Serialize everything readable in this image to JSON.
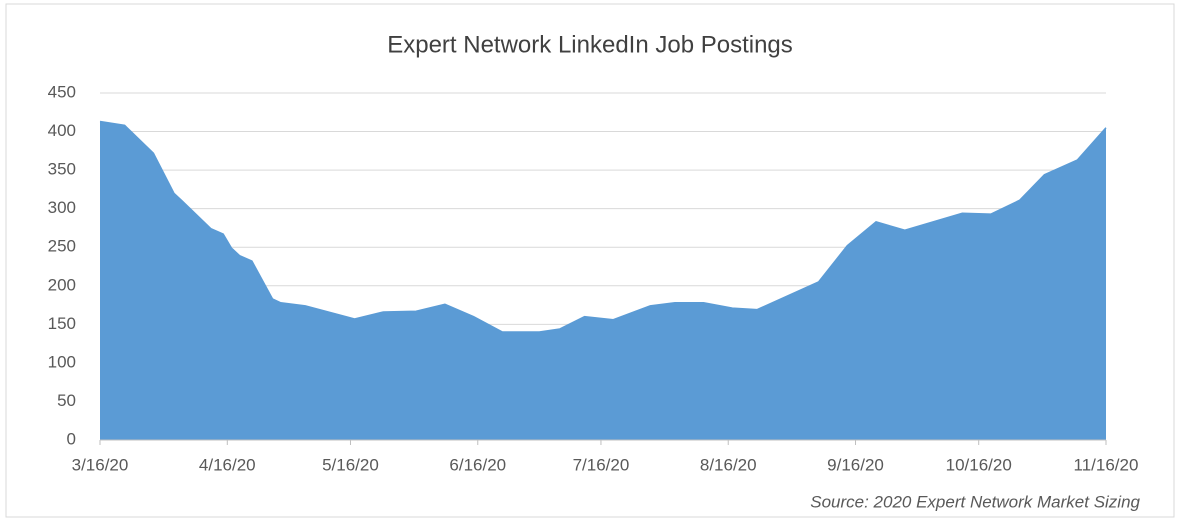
{
  "chart_data": {
    "type": "area",
    "title": "Expert Network LinkedIn Job Postings",
    "source": "Source: 2020 Expert Network Market Sizing",
    "color": "#5b9bd5",
    "grid": true,
    "x": [
      "2020-03-16",
      "2020-03-22",
      "2020-03-29",
      "2020-04-03",
      "2020-04-05",
      "2020-04-12",
      "2020-04-15",
      "2020-04-17",
      "2020-04-19",
      "2020-04-22",
      "2020-04-27",
      "2020-04-29",
      "2020-05-05",
      "2020-05-17",
      "2020-05-24",
      "2020-06-01",
      "2020-06-08",
      "2020-06-15",
      "2020-06-22",
      "2020-07-01",
      "2020-07-06",
      "2020-07-12",
      "2020-07-19",
      "2020-07-28",
      "2020-08-03",
      "2020-08-10",
      "2020-08-17",
      "2020-08-23",
      "2020-09-07",
      "2020-09-14",
      "2020-09-21",
      "2020-09-28",
      "2020-10-12",
      "2020-10-19",
      "2020-10-26",
      "2020-11-01",
      "2020-11-09",
      "2020-11-16"
    ],
    "values": [
      413,
      408,
      372,
      320,
      310,
      274,
      267,
      249,
      239,
      232,
      183,
      178,
      174,
      157,
      166,
      167,
      176,
      160,
      140,
      140,
      144,
      160,
      156,
      174,
      178,
      178,
      171,
      169,
      205,
      252,
      283,
      272,
      294,
      293,
      311,
      344,
      363,
      405
    ],
    "xlim": [
      "2020-03-16",
      "2020-11-16"
    ],
    "xticks": [
      {
        "value": "2020-03-16",
        "label": "3/16/20"
      },
      {
        "value": "2020-04-16",
        "label": "4/16/20"
      },
      {
        "value": "2020-05-16",
        "label": "5/16/20"
      },
      {
        "value": "2020-06-16",
        "label": "6/16/20"
      },
      {
        "value": "2020-07-16",
        "label": "7/16/20"
      },
      {
        "value": "2020-08-16",
        "label": "8/16/20"
      },
      {
        "value": "2020-09-16",
        "label": "9/16/20"
      },
      {
        "value": "2020-10-16",
        "label": "10/16/20"
      },
      {
        "value": "2020-11-16",
        "label": "11/16/20"
      }
    ],
    "ylim": [
      0,
      450
    ],
    "yticks": [
      0,
      50,
      100,
      150,
      200,
      250,
      300,
      350,
      400,
      450
    ]
  }
}
